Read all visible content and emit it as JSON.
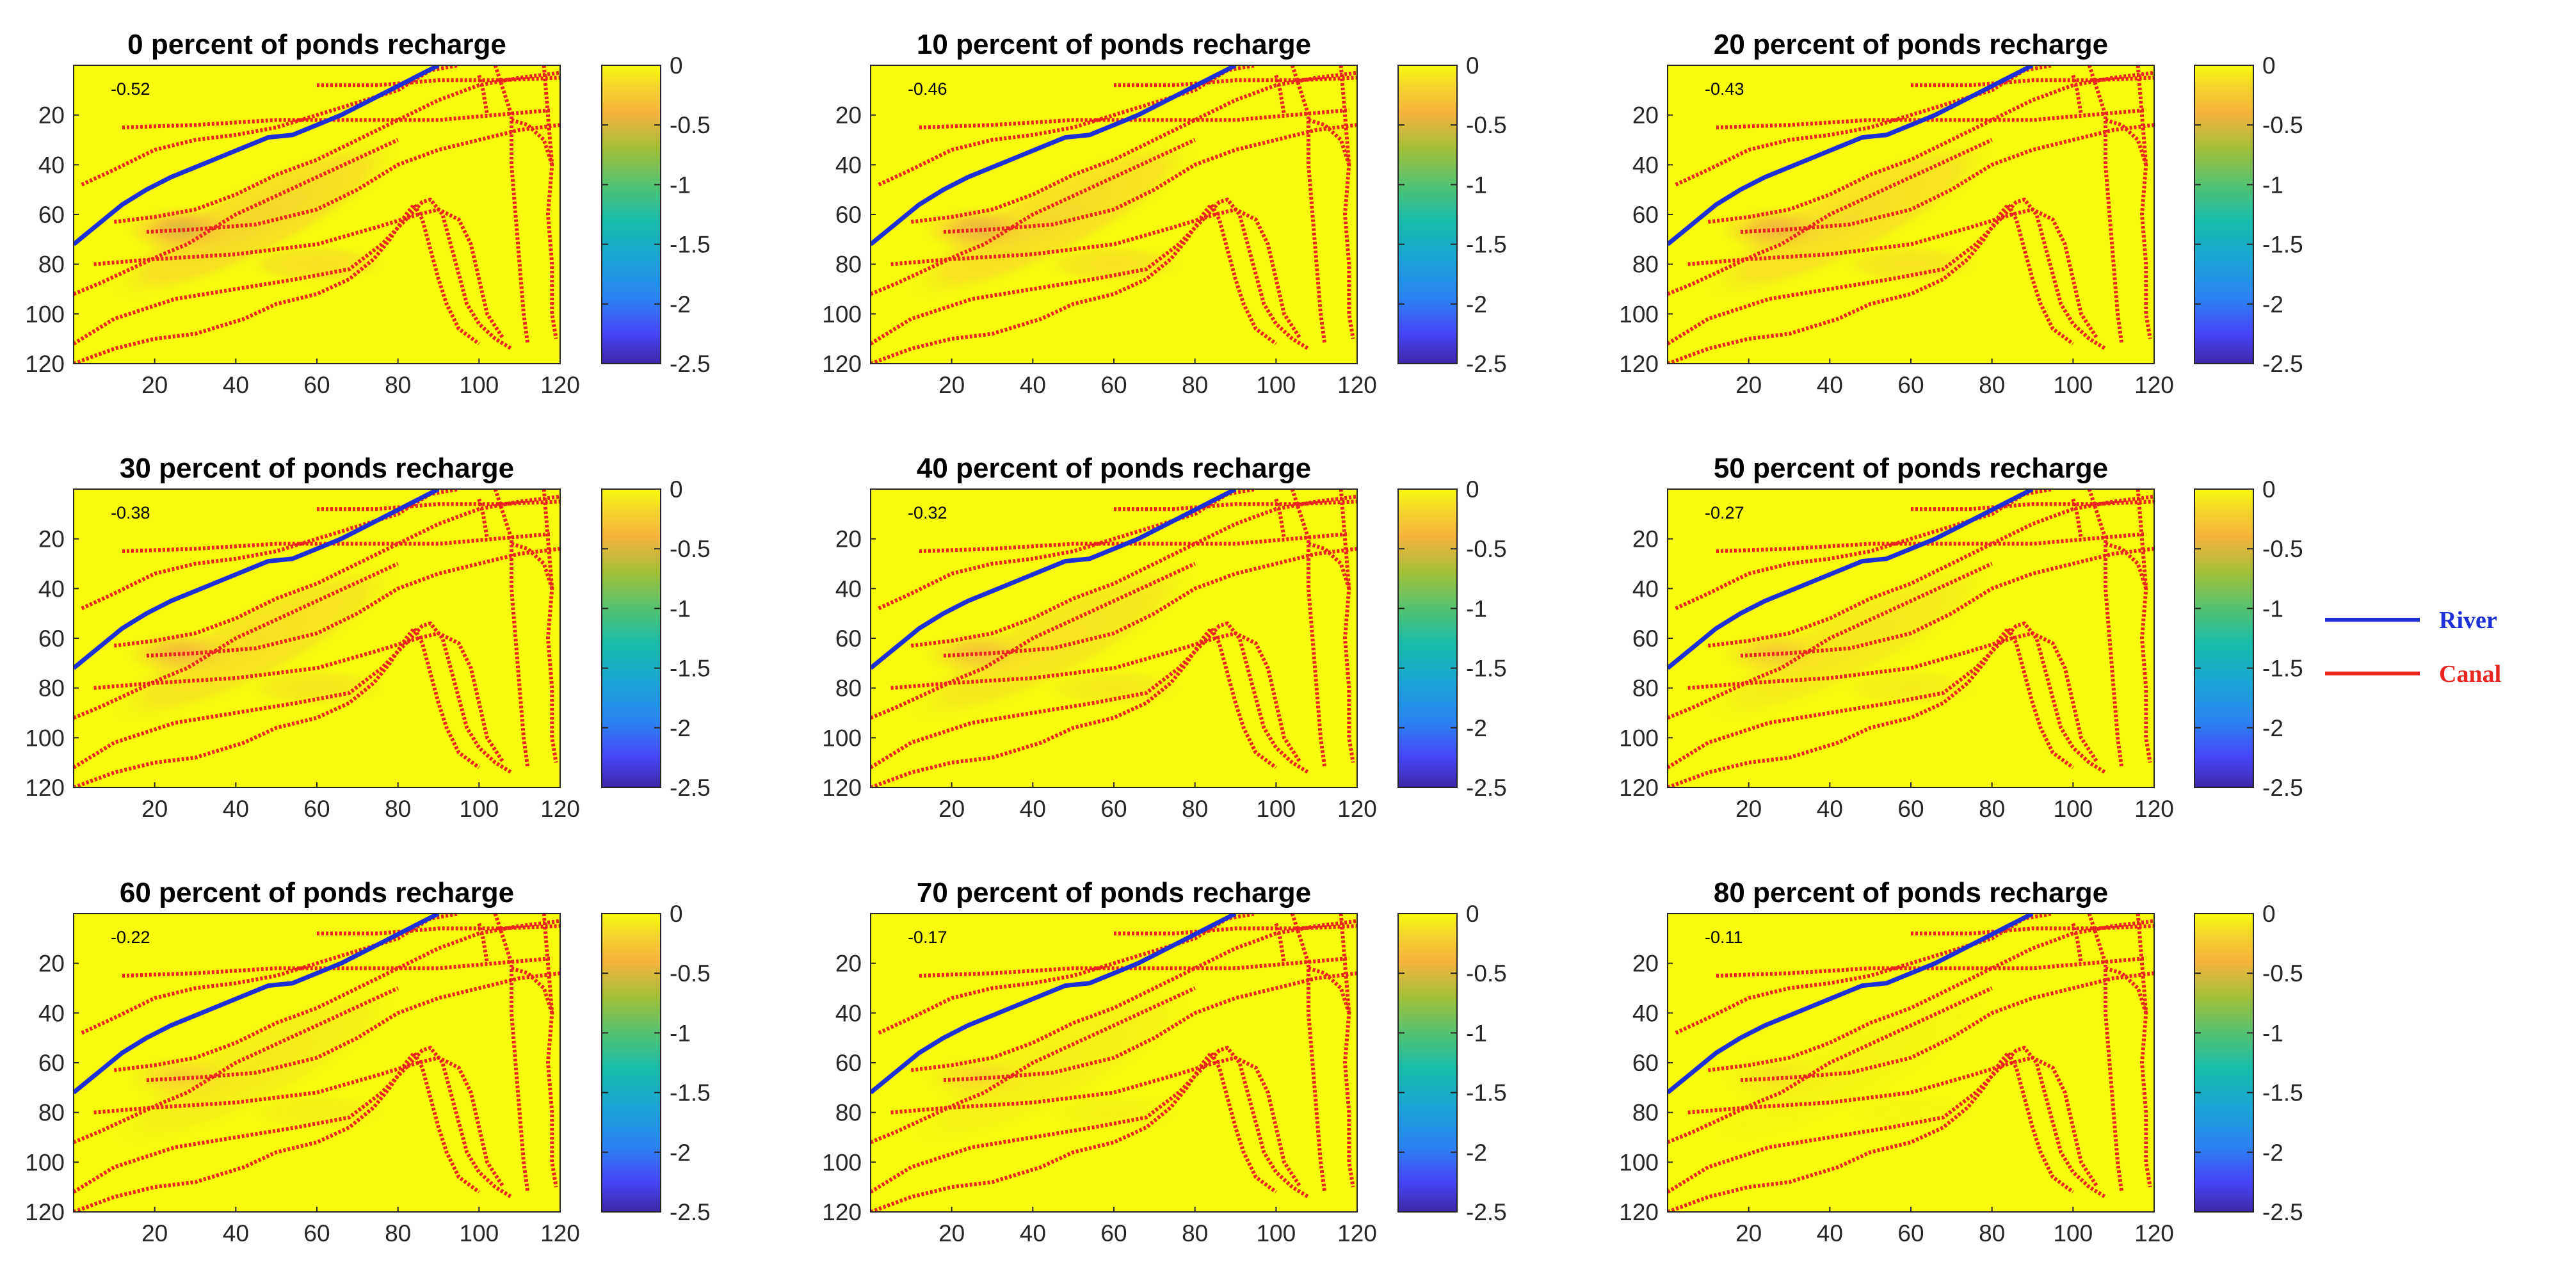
{
  "chart_data": {
    "type": "heatmap",
    "grid_size": [
      120,
      120
    ],
    "x_ticks": [
      20,
      40,
      60,
      80,
      100,
      120
    ],
    "y_ticks": [
      20,
      40,
      60,
      80,
      100,
      120
    ],
    "xlim": [
      0,
      120
    ],
    "ylim": [
      0,
      120
    ],
    "y_reversed": true,
    "colorbar": {
      "ticks": [
        0,
        -0.5,
        -1,
        -1.5,
        -2,
        -2.5
      ],
      "tick_labels": [
        "0",
        "-0.5",
        "-1",
        "-1.5",
        "-2",
        "-2.5"
      ],
      "range": [
        -2.5,
        0
      ],
      "colormap": "parula"
    },
    "panels": [
      {
        "title": "0 percent of ponds recharge",
        "pond_recharge_percent": 0,
        "min_label": "-0.52",
        "min_value": -0.52
      },
      {
        "title": "10 percent of ponds recharge",
        "pond_recharge_percent": 10,
        "min_label": "-0.46",
        "min_value": -0.46
      },
      {
        "title": "20 percent of ponds recharge",
        "pond_recharge_percent": 20,
        "min_label": "-0.43",
        "min_value": -0.43
      },
      {
        "title": "30 percent of ponds recharge",
        "pond_recharge_percent": 30,
        "min_label": "-0.38",
        "min_value": -0.38
      },
      {
        "title": "40 percent of ponds recharge",
        "pond_recharge_percent": 40,
        "min_label": "-0.32",
        "min_value": -0.32
      },
      {
        "title": "50 percent of ponds recharge",
        "pond_recharge_percent": 50,
        "min_label": "-0.27",
        "min_value": -0.27
      },
      {
        "title": "60 percent of ponds recharge",
        "pond_recharge_percent": 60,
        "min_label": "-0.22",
        "min_value": -0.22
      },
      {
        "title": "70 percent of ponds recharge",
        "pond_recharge_percent": 70,
        "min_label": "-0.17",
        "min_value": -0.17
      },
      {
        "title": "80 percent of ponds recharge",
        "pond_recharge_percent": 80,
        "min_label": "-0.11",
        "min_value": -0.11
      }
    ],
    "legend": {
      "placement": "right",
      "entries": [
        {
          "label": "River",
          "color": "#1f2fd6"
        },
        {
          "label": "Canal",
          "color": "#e8251f"
        }
      ]
    },
    "river": {
      "color": "#1f2fd6",
      "points": [
        [
          0,
          72
        ],
        [
          6,
          64
        ],
        [
          12,
          56
        ],
        [
          18,
          50
        ],
        [
          24,
          45
        ],
        [
          30,
          41
        ],
        [
          36,
          37
        ],
        [
          42,
          33
        ],
        [
          48,
          29
        ],
        [
          54,
          28
        ],
        [
          60,
          24
        ],
        [
          66,
          20
        ],
        [
          72,
          15
        ],
        [
          78,
          10
        ],
        [
          84,
          5
        ],
        [
          90,
          0
        ]
      ]
    },
    "canals": {
      "color": "#e8251f",
      "lines": [
        [
          [
            2,
            48
          ],
          [
            10,
            42
          ],
          [
            20,
            34
          ],
          [
            30,
            30
          ],
          [
            40,
            28
          ],
          [
            50,
            25
          ],
          [
            60,
            20
          ],
          [
            70,
            15
          ],
          [
            80,
            10
          ],
          [
            88,
            2
          ],
          [
            95,
            0
          ]
        ],
        [
          [
            10,
            63
          ],
          [
            20,
            61
          ],
          [
            30,
            58
          ],
          [
            40,
            52
          ],
          [
            50,
            44
          ],
          [
            60,
            38
          ],
          [
            70,
            30
          ],
          [
            80,
            22
          ],
          [
            90,
            14
          ],
          [
            100,
            8
          ],
          [
            110,
            5
          ],
          [
            120,
            3
          ]
        ],
        [
          [
            18,
            67
          ],
          [
            30,
            66
          ],
          [
            45,
            64
          ],
          [
            60,
            58
          ],
          [
            70,
            50
          ],
          [
            80,
            40
          ],
          [
            90,
            34
          ],
          [
            100,
            30
          ],
          [
            110,
            26
          ],
          [
            120,
            24
          ]
        ],
        [
          [
            5,
            80
          ],
          [
            20,
            78
          ],
          [
            40,
            76
          ],
          [
            60,
            72
          ],
          [
            75,
            65
          ],
          [
            85,
            60
          ],
          [
            90,
            58
          ],
          [
            95,
            62
          ],
          [
            98,
            72
          ],
          [
            100,
            86
          ],
          [
            102,
            100
          ],
          [
            106,
            110
          ]
        ],
        [
          [
            0,
            112
          ],
          [
            10,
            102
          ],
          [
            25,
            94
          ],
          [
            40,
            90
          ],
          [
            55,
            86
          ],
          [
            68,
            82
          ],
          [
            76,
            72
          ],
          [
            82,
            62
          ],
          [
            86,
            55
          ],
          [
            88,
            54
          ],
          [
            91,
            60
          ],
          [
            93,
            72
          ],
          [
            95,
            84
          ],
          [
            97,
            96
          ],
          [
            100,
            104
          ],
          [
            104,
            110
          ],
          [
            108,
            114
          ]
        ],
        [
          [
            0,
            120
          ],
          [
            10,
            114
          ],
          [
            20,
            110
          ],
          [
            30,
            108
          ],
          [
            42,
            102
          ],
          [
            50,
            96
          ],
          [
            60,
            92
          ],
          [
            68,
            86
          ],
          [
            74,
            78
          ],
          [
            78,
            70
          ],
          [
            82,
            60
          ],
          [
            84,
            56
          ],
          [
            86,
            62
          ],
          [
            88,
            74
          ],
          [
            90,
            86
          ],
          [
            92,
            96
          ],
          [
            95,
            106
          ],
          [
            100,
            112
          ]
        ],
        [
          [
            0,
            92
          ],
          [
            6,
            88
          ],
          [
            14,
            82
          ],
          [
            22,
            76
          ],
          [
            28,
            72
          ],
          [
            34,
            66
          ],
          [
            40,
            60
          ],
          [
            48,
            54
          ],
          [
            56,
            48
          ],
          [
            64,
            42
          ],
          [
            72,
            36
          ],
          [
            80,
            30
          ]
        ],
        [
          [
            12,
            25
          ],
          [
            30,
            24
          ],
          [
            50,
            22
          ],
          [
            70,
            22
          ],
          [
            90,
            22
          ],
          [
            104,
            20
          ],
          [
            118,
            18
          ]
        ],
        [
          [
            60,
            8
          ],
          [
            75,
            8
          ],
          [
            90,
            6
          ],
          [
            105,
            6
          ],
          [
            120,
            5
          ]
        ],
        [
          [
            104,
            0
          ],
          [
            106,
            10
          ],
          [
            108,
            20
          ],
          [
            108,
            40
          ],
          [
            109,
            60
          ],
          [
            110,
            80
          ],
          [
            111,
            100
          ],
          [
            112,
            112
          ]
        ],
        [
          [
            116,
            0
          ],
          [
            117,
            20
          ],
          [
            118,
            40
          ],
          [
            117,
            60
          ],
          [
            118,
            80
          ],
          [
            118,
            100
          ],
          [
            119,
            110
          ]
        ],
        [
          [
            100,
            4
          ],
          [
            101,
            10
          ],
          [
            102,
            20
          ]
        ],
        [
          [
            108,
            22
          ],
          [
            112,
            24
          ],
          [
            116,
            30
          ],
          [
            118,
            40
          ]
        ]
      ]
    },
    "depression": {
      "center": [
        27,
        66
      ],
      "spread_x": 9,
      "spread_y": 6,
      "halo": {
        "center": [
          45,
          62
        ],
        "angle_deg": -27,
        "rx": 42,
        "ry": 16,
        "value_ratio": 0.38
      },
      "lobe": {
        "center": [
          60,
          80
        ],
        "rx": 18,
        "ry": 8,
        "value_ratio": 0.22
      }
    }
  }
}
